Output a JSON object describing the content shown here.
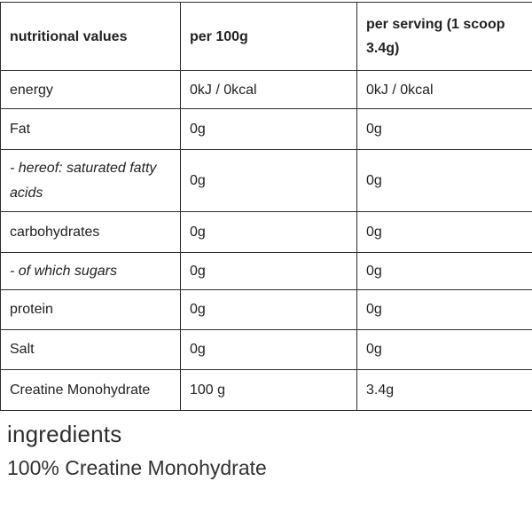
{
  "table": {
    "headers": {
      "col1": "nutritional values",
      "col2": "per 100g",
      "col3": "per serving (1 scoop 3.4g)"
    },
    "rows": [
      {
        "label": "energy",
        "per100g": "0kJ / 0kcal",
        "perServing": "0kJ / 0kcal"
      },
      {
        "label": "Fat",
        "per100g": "0g",
        "perServing": "0g"
      },
      {
        "label": "- hereof: saturated fatty acids",
        "per100g": "0g",
        "perServing": "0g"
      },
      {
        "label": "carbohydrates",
        "per100g": "0g",
        "perServing": "0g"
      },
      {
        "label": "- of which sugars",
        "per100g": "0g",
        "perServing": "0g"
      },
      {
        "label": "protein",
        "per100g": "0g",
        "perServing": "0g"
      },
      {
        "label": "Salt",
        "per100g": "0g",
        "perServing": "0g"
      },
      {
        "label": "Creatine Monohydrate",
        "per100g": "100 g",
        "perServing": "3.4g"
      }
    ]
  },
  "ingredients": {
    "heading": "ingredients",
    "text": "100% Creatine Monohydrate"
  },
  "colors": {
    "background": "#ffffff",
    "border": "#2e2e2e",
    "text": "#222222"
  }
}
